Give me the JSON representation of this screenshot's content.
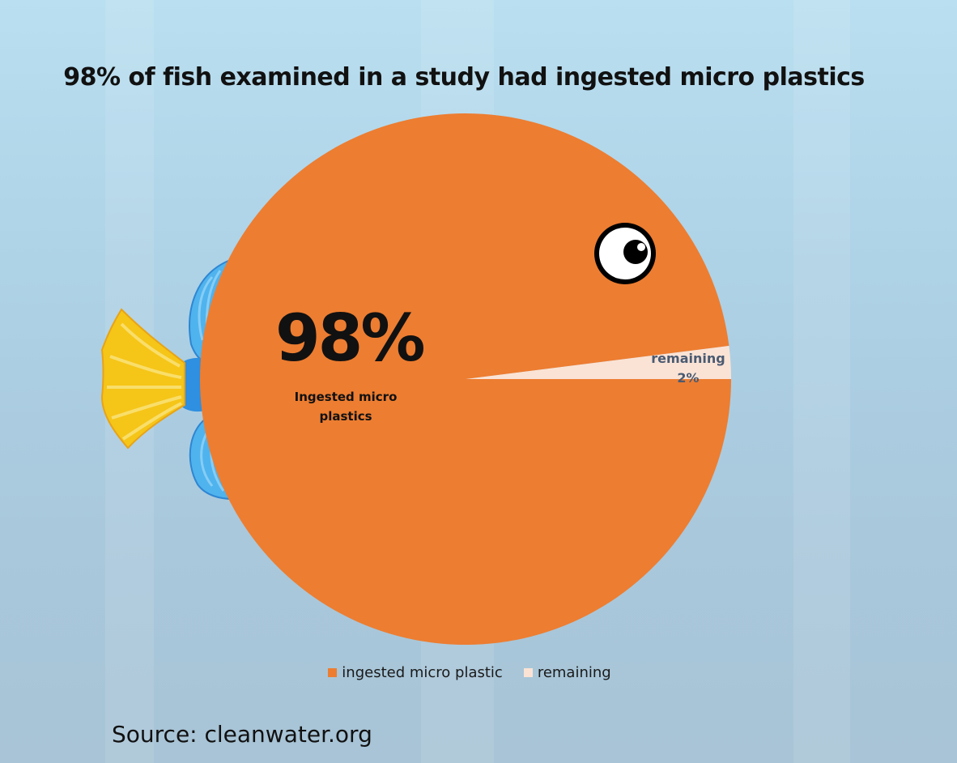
{
  "chart_data": {
    "type": "pie",
    "title": "98% of fish examined in a study had ingested micro plastics",
    "categories": [
      "ingested micro plastic",
      "remaining"
    ],
    "values": [
      98,
      2
    ],
    "colors": [
      "#ED7D31",
      "#FAE3D5"
    ],
    "data_labels": [
      {
        "value": "98%",
        "text": "Ingested micro plastics"
      },
      {
        "value": "2%",
        "text": "remaining"
      }
    ],
    "legend_position": "bottom"
  },
  "source": "Source: cleanwater.org",
  "decoration": {
    "tail_color": "#F5C518",
    "fin_color": "#4FB3EE",
    "eye_icon": "fish-eye-icon",
    "tail_icon": "fish-tail-icon",
    "fin_icon": "fish-fin-icon"
  }
}
